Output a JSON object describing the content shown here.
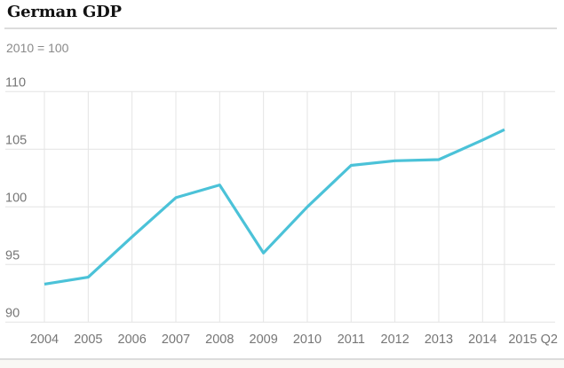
{
  "header": {
    "title": "German GDP",
    "subtitle": "2010 = 100"
  },
  "colors": {
    "title_text": "#121212",
    "subtitle_text": "#8a8a8a",
    "axis_label": "#767676",
    "gridline": "#e4e4e4",
    "divider": "#dcdcdc",
    "footer_bg": "#f9f8f4",
    "line": "#4bc2d8"
  },
  "chart_data": {
    "type": "line",
    "title": "German GDP",
    "subtitle": "2010 = 100",
    "categories": [
      "2004",
      "2005",
      "2006",
      "2007",
      "2008",
      "2009",
      "2010",
      "2011",
      "2012",
      "2013",
      "2014",
      "2015 Q2"
    ],
    "x_positions": [
      0,
      1,
      2,
      3,
      4,
      5,
      6,
      7,
      8,
      9,
      10,
      10.5
    ],
    "series": [
      {
        "name": "German GDP (2010 = 100)",
        "values": [
          93.3,
          93.9,
          97.4,
          100.8,
          101.9,
          96.0,
          100.0,
          103.6,
          104.0,
          104.1,
          105.8,
          106.7
        ]
      }
    ],
    "ylim": [
      90,
      110
    ],
    "yticks": [
      90,
      95,
      100,
      105,
      110
    ],
    "xlabel": "",
    "ylabel": "",
    "grid": true,
    "legend": false,
    "line_color": "#4bc2d8"
  }
}
